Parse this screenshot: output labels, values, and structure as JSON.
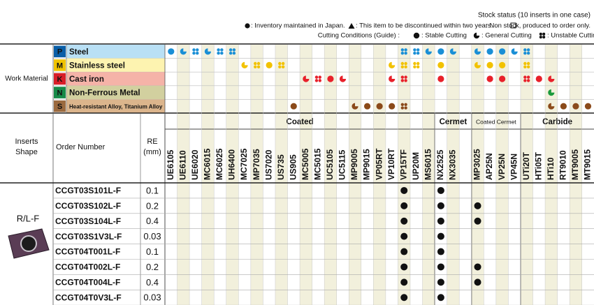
{
  "legend": {
    "stock_title": "Stock status (10 inserts in one case)",
    "stock_items": [
      ": Inventory maintained in Japan.",
      ": This item to be discontinued within two years.",
      ": Non stock, produced to order only."
    ],
    "cutting_title": "Cutting Conditions (Guide) :",
    "cutting_items": [
      ": Stable Cutting",
      ": General Cutting",
      ": Unstable Cutting"
    ]
  },
  "work_material": {
    "label": "Work Material",
    "rows": [
      {
        "code": "P",
        "name": "Steel",
        "color": "#1a8fd6",
        "cutting": {
          "UE6105": 0,
          "UE6110": 1,
          "UE6020": 2,
          "MC6015": 1,
          "MC6025": 2,
          "UH6400": 2,
          "VP15TF": 2,
          "UP20M": 2,
          "MS6015": 1,
          "NX2525": 0,
          "NX3035": 1,
          "MP3025": 1,
          "AP25N": 0,
          "VP25N": 0,
          "VP45N": 1,
          "UTi20T": 2
        }
      },
      {
        "code": "M",
        "name": "Stainless steel",
        "color": "#f2c200",
        "cutting": {
          "MC7025": 1,
          "MP7035": 2,
          "US7020": 0,
          "US735": 2,
          "VP10RT": 1,
          "VP15TF": 2,
          "UP20M": 2,
          "NX2525": 0,
          "MP3025": 1,
          "AP25N": 0,
          "VP25N": 0,
          "UTi20T": 2
        }
      },
      {
        "code": "K",
        "name": "Cast iron",
        "color": "#e8202a",
        "cutting": {
          "MC5005": 1,
          "MC5015": 2,
          "UC5105": 0,
          "UC5115": 1,
          "VP10RT": 1,
          "VP15TF": 2,
          "NX2525": 0,
          "AP25N": 0,
          "VP25N": 0,
          "UTi20T": 2,
          "HTi05T": 0,
          "HTi10": 1
        }
      },
      {
        "code": "N",
        "name": "Non-Ferrous Metal",
        "color": "#1a9a3c",
        "cutting": {
          "HTi10": 1
        }
      },
      {
        "code": "S",
        "name": "Heat-resistant Alloy, Titanium Alloy",
        "color": "#8b4a1a",
        "cutting": {
          "US905": 0,
          "MP9005": 1,
          "MP9015": 0,
          "VP05RT": 0,
          "VP10RT": 0,
          "VP15TF": 2,
          "HTi10": 1,
          "RT9010": 0,
          "MT9005": 0,
          "MT9015": 0
        }
      }
    ]
  },
  "header": {
    "inserts_shape": [
      "Inserts",
      "Shape"
    ],
    "order_number": "Order Number",
    "re": [
      "RE",
      "(mm)"
    ],
    "groups": [
      {
        "name": "Coated",
        "grades": [
          "UE6105",
          "UE6110",
          "UE6020",
          "MC6015",
          "MC6025",
          "UH6400",
          "MC7025",
          "MP7035",
          "US7020",
          "US735",
          "US905",
          "MC5005",
          "MC5015",
          "UC5105",
          "UC5115",
          "MP9005",
          "MP9015",
          "VP05RT",
          "VP10RT",
          "VP15TF",
          "UP20M",
          "MS6015"
        ]
      },
      {
        "name": "Cermet",
        "grades": [
          "NX2525",
          "NX3035"
        ]
      },
      {
        "name": "Coated Cermet",
        "grades": [
          "MP3025",
          "AP25N",
          "VP25N",
          "VP45N"
        ]
      },
      {
        "name": "Carbide",
        "grades": [
          "UTi20T",
          "HTi05T",
          "HTi10",
          "RT9010",
          "MT9005",
          "MT9015"
        ]
      }
    ]
  },
  "table": {
    "shape": "R/L-F",
    "rows": [
      {
        "order": "CCGT03S101L-F",
        "re": "0.1",
        "stock": [
          "VP15TF",
          "NX2525"
        ]
      },
      {
        "order": "CCGT03S102L-F",
        "re": "0.2",
        "stock": [
          "VP15TF",
          "NX2525",
          "MP3025"
        ]
      },
      {
        "order": "CCGT03S104L-F",
        "re": "0.4",
        "stock": [
          "VP15TF",
          "NX2525",
          "MP3025"
        ]
      },
      {
        "order": "CCGT03S1V3L-F",
        "re": "0.03",
        "stock": [
          "VP15TF",
          "NX2525"
        ]
      },
      {
        "order": "CCGT04T001L-F",
        "re": "0.1",
        "stock": [
          "VP15TF",
          "NX2525"
        ]
      },
      {
        "order": "CCGT04T002L-F",
        "re": "0.2",
        "stock": [
          "VP15TF",
          "NX2525",
          "MP3025"
        ]
      },
      {
        "order": "CCGT04T004L-F",
        "re": "0.4",
        "stock": [
          "VP15TF",
          "NX2525",
          "MP3025"
        ]
      },
      {
        "order": "CCGT04T0V3L-F",
        "re": "0.03",
        "stock": [
          "VP15TF",
          "NX2525"
        ]
      }
    ]
  }
}
